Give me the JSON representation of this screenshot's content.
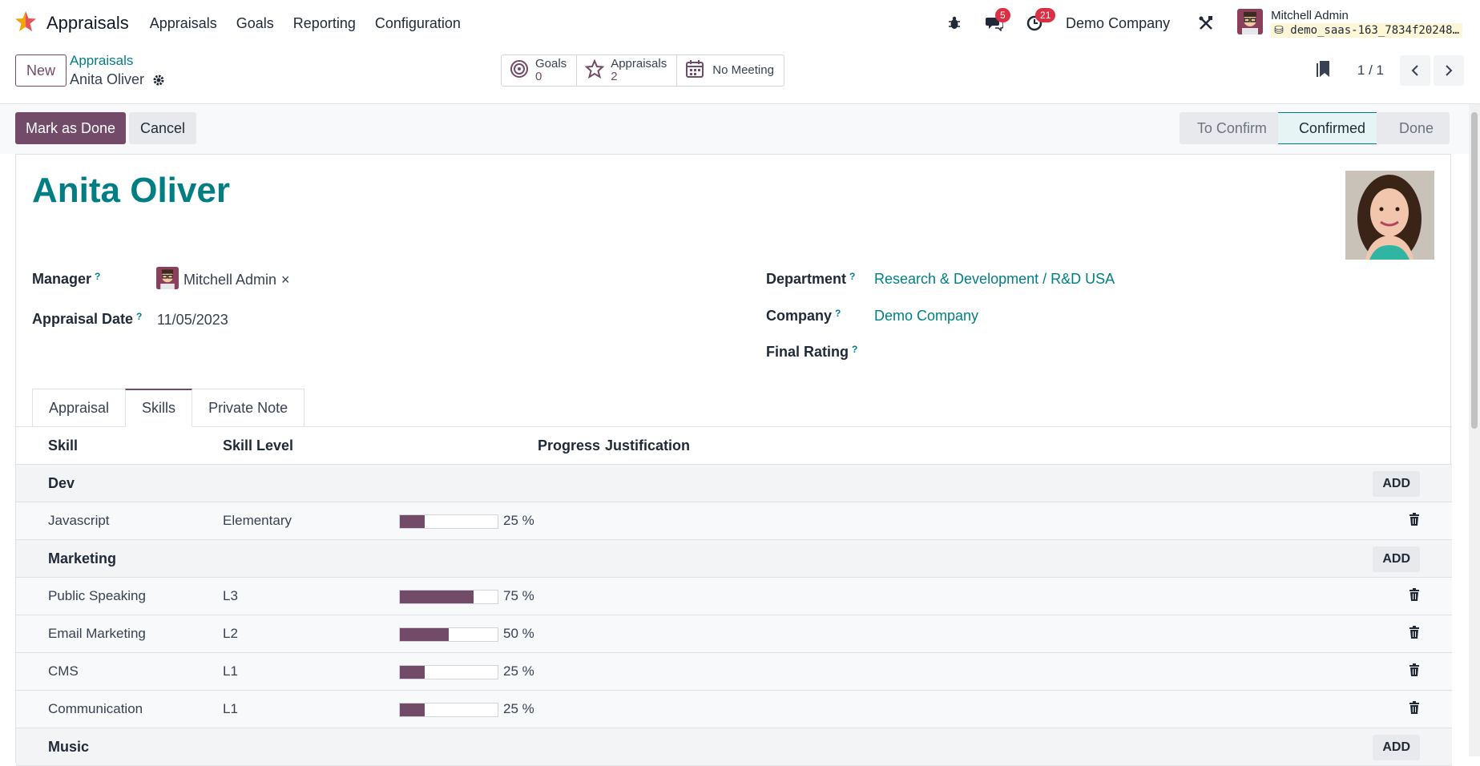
{
  "app": {
    "name": "Appraisals",
    "menu": [
      "Appraisals",
      "Goals",
      "Reporting",
      "Configuration"
    ],
    "messages_count": "5",
    "activities_count": "21",
    "company": "Demo Company",
    "user_name": "Mitchell Admin",
    "database": "demo_saas-163_7834f20248…"
  },
  "control": {
    "new_label": "New",
    "breadcrumb_parent": "Appraisals",
    "breadcrumb_current": "Anita Oliver",
    "smart_buttons": [
      {
        "label": "Goals",
        "value": "0"
      },
      {
        "label": "Appraisals",
        "value": "2"
      },
      {
        "label": "No Meeting"
      }
    ],
    "pager": "1 / 1"
  },
  "actions": {
    "mark_done": "Mark as Done",
    "cancel": "Cancel",
    "stages": [
      "To Confirm",
      "Confirmed",
      "Done"
    ],
    "current_stage": "Confirmed"
  },
  "record": {
    "employee_name": "Anita Oliver",
    "manager_label": "Manager",
    "manager_value": "Mitchell Admin",
    "appraisal_date_label": "Appraisal Date",
    "appraisal_date": "11/05/2023",
    "department_label": "Department",
    "department": "Research & Development / R&D USA",
    "company_label": "Company",
    "company": "Demo Company",
    "final_rating_label": "Final Rating",
    "help_mark": "?"
  },
  "tabs": [
    "Appraisal",
    "Skills",
    "Private Note"
  ],
  "active_tab": "Skills",
  "skills": {
    "columns": [
      "Skill",
      "Skill Level",
      "Progress",
      "Justification"
    ],
    "add_label": "ADD",
    "groups": [
      {
        "name": "Dev",
        "lines": [
          {
            "skill": "Javascript",
            "level": "Elementary",
            "progress": 25,
            "progress_text": "25 %"
          }
        ]
      },
      {
        "name": "Marketing",
        "lines": [
          {
            "skill": "Public Speaking",
            "level": "L3",
            "progress": 75,
            "progress_text": "75 %"
          },
          {
            "skill": "Email Marketing",
            "level": "L2",
            "progress": 50,
            "progress_text": "50 %"
          },
          {
            "skill": "CMS",
            "level": "L1",
            "progress": 25,
            "progress_text": "25 %"
          },
          {
            "skill": "Communication",
            "level": "L1",
            "progress": 25,
            "progress_text": "25 %"
          }
        ]
      },
      {
        "name": "Music",
        "lines": []
      }
    ]
  },
  "colors": {
    "primary": "#714b67",
    "link": "#017e84",
    "badge": "#dc2f44"
  }
}
